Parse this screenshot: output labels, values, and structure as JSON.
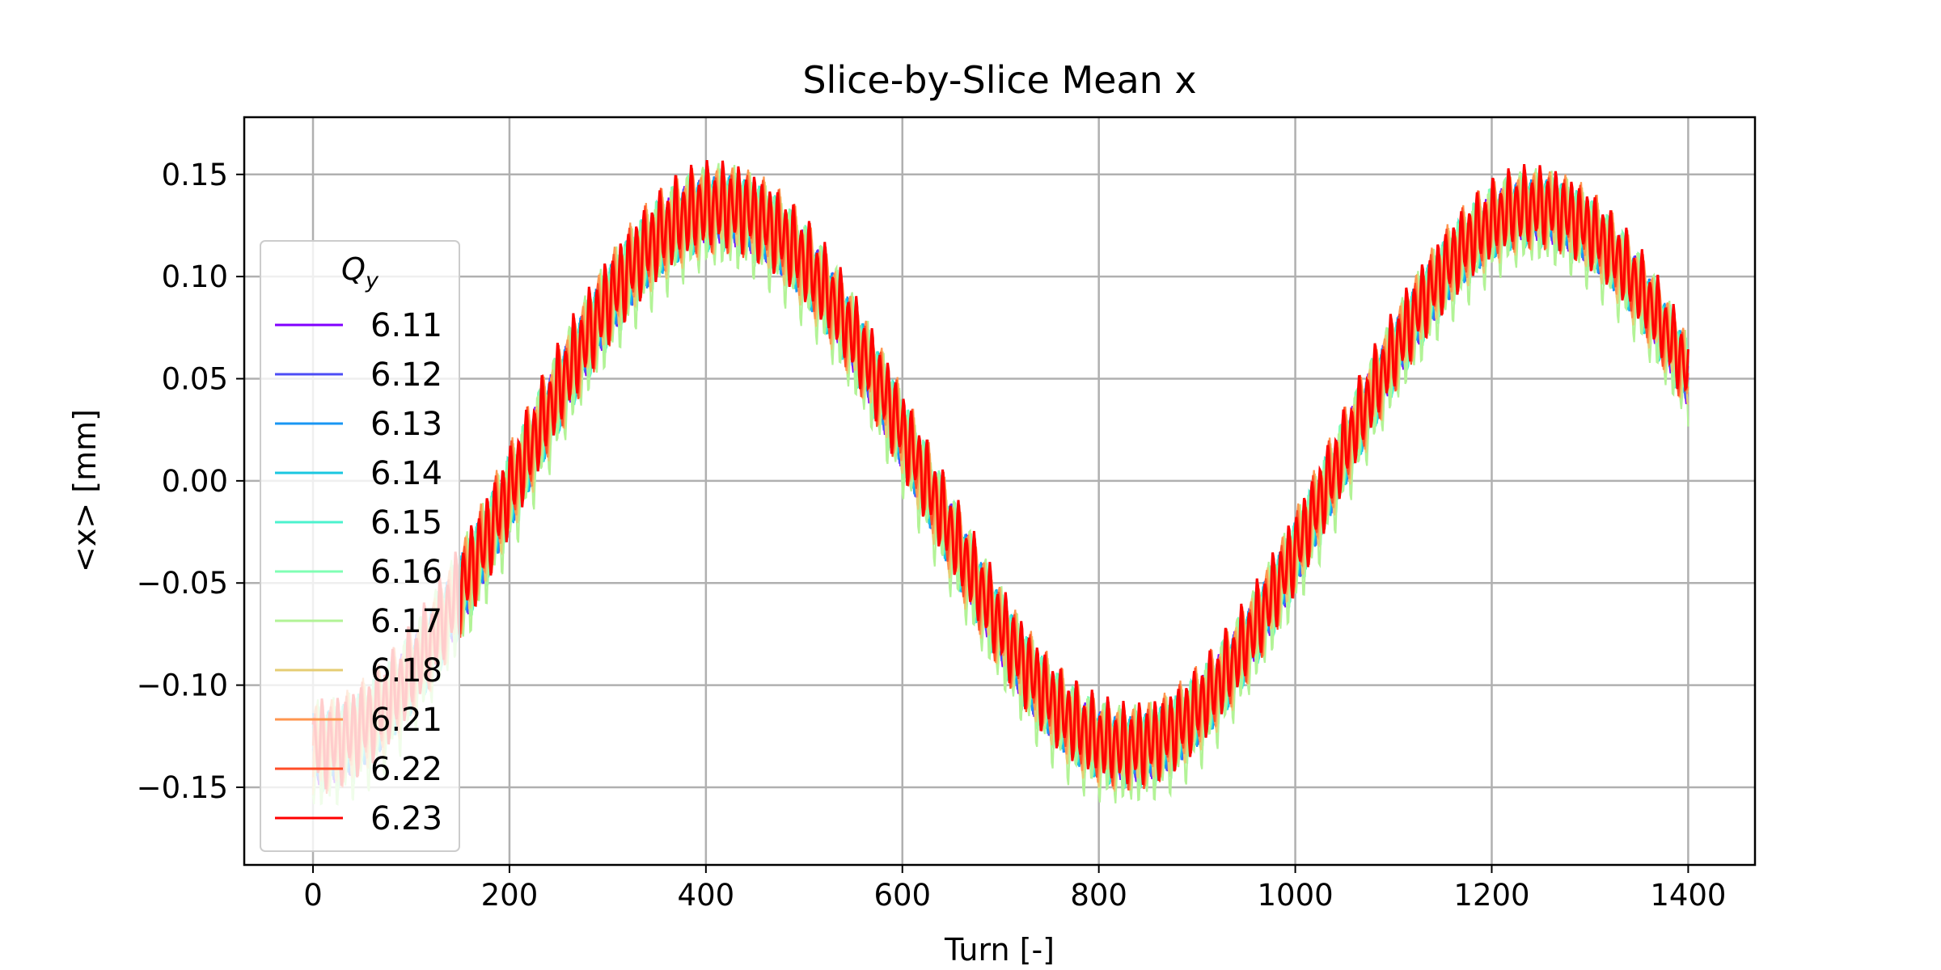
{
  "chart_data": {
    "type": "line",
    "title": "Slice-by-Slice Mean x",
    "xlabel": "Turn [-]",
    "ylabel": "<x> [mm]",
    "xlim": [
      -70,
      1468
    ],
    "ylim": [
      -0.188,
      0.178
    ],
    "xticks": [
      0,
      200,
      400,
      600,
      800,
      1000,
      1200,
      1400
    ],
    "xtick_labels": [
      "0",
      "200",
      "400",
      "600",
      "800",
      "1000",
      "1200",
      "1400"
    ],
    "yticks": [
      0.15,
      0.1,
      0.05,
      0.0,
      -0.05,
      -0.1,
      -0.15
    ],
    "ytick_labels": [
      "0.15",
      "0.10",
      "0.05",
      "0.00",
      "−0.05",
      "−0.10",
      "−0.15"
    ],
    "grid": true,
    "legend": {
      "title_base": "Q",
      "title_sub": "y",
      "placement": "center-left"
    },
    "x_range": [
      0,
      1400
    ],
    "model": {
      "description_free": true,
      "center_offset": 0.0,
      "slow_amplitude": 0.132,
      "slow_period_turns": 830,
      "slow_phase_turn": 207,
      "fast_period_turns": 8,
      "band_halfwidth_start": 0.026,
      "band_halfwidth_end": 0.022
    },
    "series": [
      {
        "name": "6.11",
        "color": "#8000ff",
        "band": 0.018,
        "offset": 0.0
      },
      {
        "name": "6.12",
        "color": "#4d4df6",
        "band": 0.018,
        "offset": 0.0
      },
      {
        "name": "6.13",
        "color": "#1996f3",
        "band": 0.019,
        "offset": 0.0
      },
      {
        "name": "6.14",
        "color": "#1ac7e0",
        "band": 0.02,
        "offset": 0.0
      },
      {
        "name": "6.15",
        "color": "#4cf2ce",
        "band": 0.022,
        "offset": 0.0
      },
      {
        "name": "6.16",
        "color": "#80ffb4",
        "band": 0.024,
        "offset": 0.0
      },
      {
        "name": "6.17",
        "color": "#b2f396",
        "band": 0.03,
        "offset": -0.004
      },
      {
        "name": "6.18",
        "color": "#e6cd73",
        "band": 0.024,
        "offset": 0.0
      },
      {
        "name": "6.21",
        "color": "#ff964f",
        "band": 0.024,
        "offset": 0.002
      },
      {
        "name": "6.22",
        "color": "#ff4d27",
        "band": 0.024,
        "offset": 0.002
      },
      {
        "name": "6.23",
        "color": "#ff0000",
        "band": 0.024,
        "offset": 0.003
      }
    ]
  }
}
